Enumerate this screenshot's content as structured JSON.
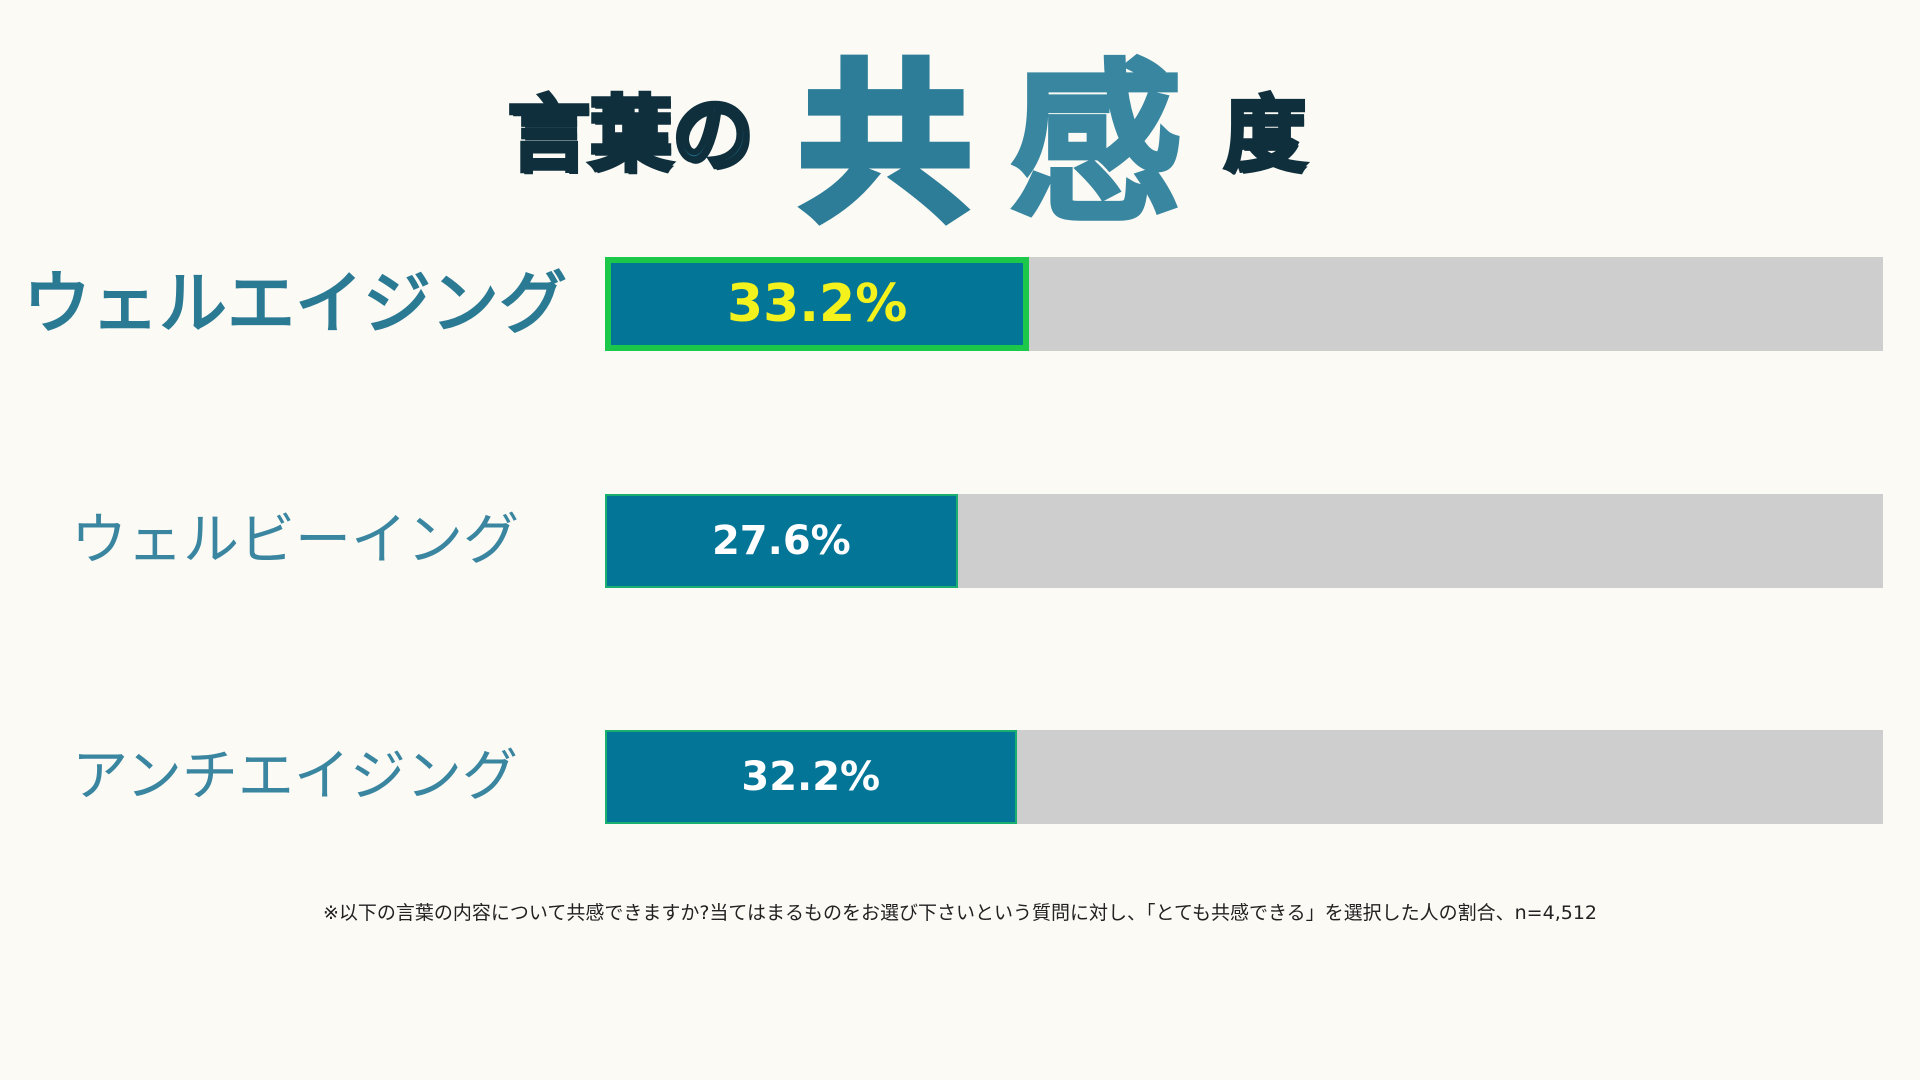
{
  "title": {
    "part1": "言葉の",
    "part2": "共",
    "part3": "感",
    "part4": "度"
  },
  "chart_data": {
    "type": "bar",
    "orientation": "horizontal",
    "categories": [
      "ウェルエイジング",
      "ウェルビーイング",
      "アンチエイジング"
    ],
    "values": [
      33.2,
      27.6,
      32.2
    ],
    "value_labels": [
      "33.2%",
      "27.6%",
      "32.2%"
    ],
    "xlim": [
      0,
      100
    ],
    "highlight_index": 0,
    "colors": {
      "fill": "#037597",
      "track": "#CFCECE",
      "highlight_border": "#1CC84A",
      "highlight_text": "#F4F21C"
    }
  },
  "footnote": "※以下の言葉の内容について共感できますか?当てはまるものをお選び下さいという質問に対し、「とても共感できる」を選択した人の割合、n=4,512"
}
